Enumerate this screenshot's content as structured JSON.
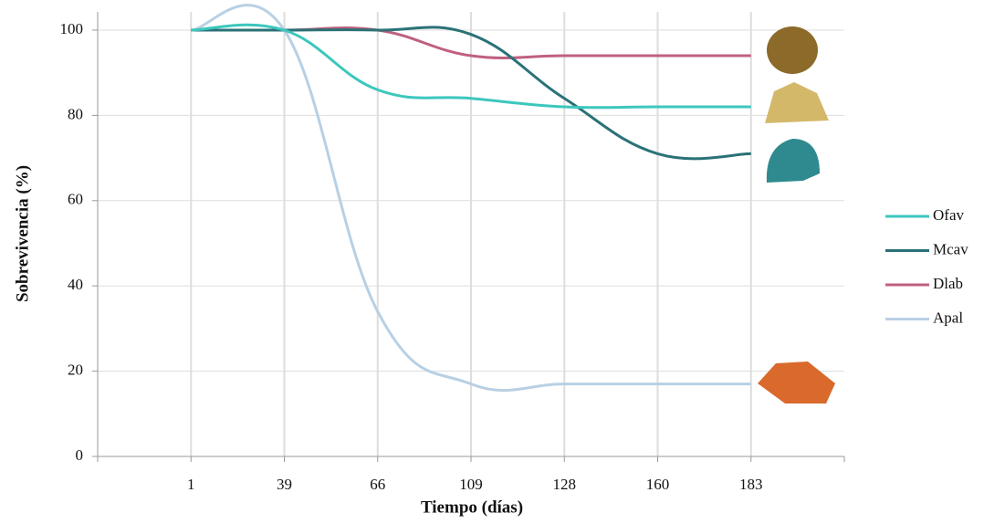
{
  "chart_data": {
    "type": "line",
    "x_label": "Tiempo (días)",
    "y_label": "Sobrevivencia (%)",
    "categories": [
      "1",
      "39",
      "66",
      "109",
      "128",
      "160",
      "183"
    ],
    "series": [
      {
        "name": "Ofav",
        "color": "#3cc7bd",
        "values": [
          100,
          100,
          86,
          84,
          82,
          82,
          82
        ]
      },
      {
        "name": "Mcav",
        "color": "#2a7277",
        "values": [
          100,
          100,
          100,
          99,
          84,
          71,
          71
        ]
      },
      {
        "name": "Dlab",
        "color": "#c0607f",
        "values": [
          100,
          100,
          100,
          94,
          94,
          94,
          94
        ]
      },
      {
        "name": "Apal",
        "color": "#b8d0e4",
        "values": [
          100,
          100,
          34,
          17,
          17,
          17,
          17
        ]
      }
    ],
    "ylim": [
      0,
      100
    ],
    "yticks": [
      0,
      20,
      40,
      60,
      80,
      100
    ],
    "grid": true,
    "legend": "right"
  }
}
